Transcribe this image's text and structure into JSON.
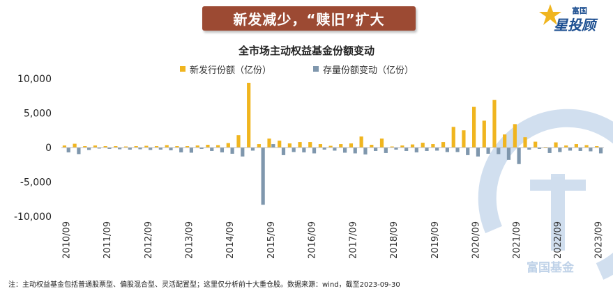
{
  "banner": {
    "title": "新发减少，“赎旧”扩大"
  },
  "logo": {
    "line1": "富国",
    "line2": "星投顾"
  },
  "watermark": {
    "text": "富国基金"
  },
  "colors": {
    "new_issue": "#f0b51f",
    "stock_change": "#7f97ad",
    "banner": "#9c4a33"
  },
  "note": "注：主动权益基金包括普通股票型、偏股混合型、灵活配置型；这里仅分析前十大重仓股。数据来源：wind，截至2023-09-30",
  "chart_data": {
    "type": "bar",
    "title": "全市场主动权益基金份额变动",
    "xlabel": "",
    "ylabel": "",
    "ylim": [
      -10000,
      10000
    ],
    "yticks": [
      "10,000",
      "5,000",
      "0",
      "-5,000",
      "-10,000"
    ],
    "ytick_values": [
      10000,
      5000,
      0,
      -5000,
      -10000
    ],
    "legend_position": "top-center",
    "grid": false,
    "x_tick_labels": [
      "2010/09",
      "2011/09",
      "2012/09",
      "2013/09",
      "2014/09",
      "2015/09",
      "2016/09",
      "2017/09",
      "2018/09",
      "2019/09",
      "2020/09",
      "2021/09",
      "2022/09",
      "2023/09"
    ],
    "categories": [
      "2010Q3",
      "2010Q4",
      "2011Q1",
      "2011Q2",
      "2011Q3",
      "2011Q4",
      "2012Q1",
      "2012Q2",
      "2012Q3",
      "2012Q4",
      "2013Q1",
      "2013Q2",
      "2013Q3",
      "2013Q4",
      "2014Q1",
      "2014Q2",
      "2014Q3",
      "2014Q4",
      "2015Q1",
      "2015Q2",
      "2015Q3",
      "2015Q4",
      "2016Q1",
      "2016Q2",
      "2016Q3",
      "2016Q4",
      "2017Q1",
      "2017Q2",
      "2017Q3",
      "2017Q4",
      "2018Q1",
      "2018Q2",
      "2018Q3",
      "2018Q4",
      "2019Q1",
      "2019Q2",
      "2019Q3",
      "2019Q4",
      "2020Q1",
      "2020Q2",
      "2020Q3",
      "2020Q4",
      "2021Q1",
      "2021Q2",
      "2021Q3",
      "2021Q4",
      "2022Q1",
      "2022Q2",
      "2022Q3",
      "2022Q4",
      "2023Q1",
      "2023Q2",
      "2023Q3"
    ],
    "series": [
      {
        "name": "新发行份额（亿份）",
        "values": [
          300,
          550,
          200,
          300,
          200,
          200,
          150,
          200,
          250,
          200,
          350,
          200,
          200,
          300,
          400,
          350,
          650,
          1800,
          9400,
          500,
          1300,
          1000,
          600,
          800,
          800,
          500,
          250,
          500,
          600,
          1600,
          400,
          1300,
          150,
          300,
          450,
          700,
          500,
          800,
          3000,
          2500,
          5900,
          3900,
          6900,
          1900,
          3400,
          1500,
          850,
          100,
          750,
          300,
          500,
          350,
          200
        ]
      },
      {
        "name": "存量份额变动（亿份）",
        "values": [
          -700,
          -950,
          -350,
          -150,
          -200,
          -250,
          -300,
          -250,
          -350,
          -300,
          -400,
          -700,
          -750,
          -200,
          -500,
          -700,
          -900,
          -1300,
          -450,
          -8300,
          500,
          -1100,
          -650,
          -700,
          -850,
          -300,
          -450,
          -750,
          -850,
          -1000,
          -500,
          -800,
          -300,
          -500,
          -700,
          -500,
          -450,
          -650,
          -650,
          -1100,
          -1300,
          -900,
          -950,
          -1800,
          -2400,
          -300,
          -200,
          -800,
          -650,
          -450,
          -500,
          -550,
          -850
        ]
      }
    ]
  }
}
